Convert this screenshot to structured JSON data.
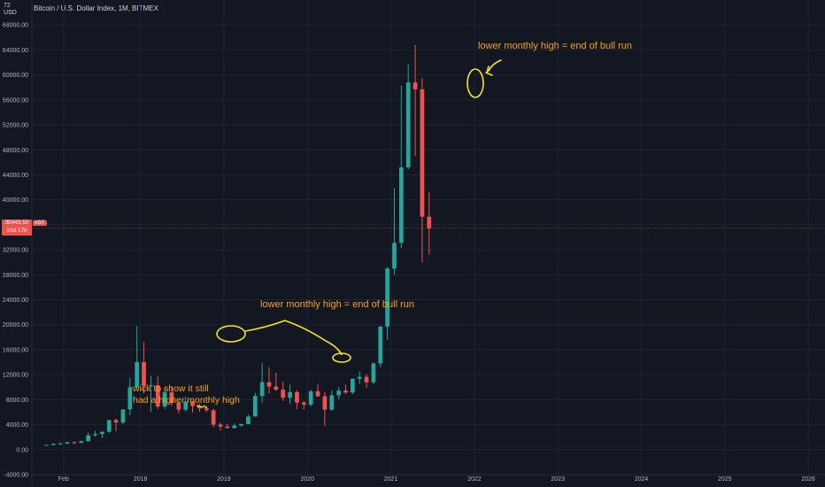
{
  "header": {
    "title": "Bitcoin / U.S. Dollar Index, 1M, BITMEX",
    "currency_top": "72",
    "currency_bottom": "USD"
  },
  "price_tag": {
    "price": "35443.50",
    "countdown": "10d 17h",
    "symbol": "XBT"
  },
  "colors": {
    "background": "#131722",
    "up": "#26a69a",
    "down": "#ef5350",
    "annotation": "#f7a21b",
    "marker": "#f4e22b"
  },
  "chart_data": {
    "type": "candlestick",
    "title": "Bitcoin / U.S. Dollar Index, 1M, BITMEX",
    "y_ticks": [
      "68000.00",
      "64000.00",
      "60000.00",
      "56000.00",
      "52000.00",
      "48000.00",
      "44000.00",
      "40000.00",
      "36000.00",
      "32000.00",
      "28000.00",
      "24000.00",
      "20000.00",
      "16000.00",
      "12000.00",
      "8000.00",
      "4000.00",
      "0.00",
      "-4000.00"
    ],
    "x_ticks": [
      "Feb",
      "2018",
      "2019",
      "2020",
      "2021",
      "2022",
      "2023",
      "2024",
      "2025",
      "2026"
    ],
    "ylim": [
      -4000,
      72000
    ],
    "xlim": [
      2016.7,
      2026.2
    ],
    "last_price": 35443.5,
    "candles": [
      {
        "t": "2016-11",
        "o": 700,
        "h": 760,
        "l": 690,
        "c": 745
      },
      {
        "t": "2016-12",
        "o": 745,
        "h": 980,
        "l": 740,
        "c": 960
      },
      {
        "t": "2017-01",
        "o": 960,
        "h": 1150,
        "l": 800,
        "c": 970
      },
      {
        "t": "2017-02",
        "o": 970,
        "h": 1210,
        "l": 940,
        "c": 1190
      },
      {
        "t": "2017-03",
        "o": 1190,
        "h": 1350,
        "l": 890,
        "c": 1080
      },
      {
        "t": "2017-04",
        "o": 1080,
        "h": 1450,
        "l": 1070,
        "c": 1350
      },
      {
        "t": "2017-05",
        "o": 1350,
        "h": 2760,
        "l": 1350,
        "c": 2300
      },
      {
        "t": "2017-06",
        "o": 2300,
        "h": 3000,
        "l": 2100,
        "c": 2500
      },
      {
        "t": "2017-07",
        "o": 2500,
        "h": 2920,
        "l": 1830,
        "c": 2860
      },
      {
        "t": "2017-08",
        "o": 2860,
        "h": 4750,
        "l": 2700,
        "c": 4740
      },
      {
        "t": "2017-09",
        "o": 4740,
        "h": 4980,
        "l": 2950,
        "c": 4340
      },
      {
        "t": "2017-10",
        "o": 4340,
        "h": 6450,
        "l": 4100,
        "c": 6440
      },
      {
        "t": "2017-11",
        "o": 6440,
        "h": 11500,
        "l": 5500,
        "c": 10000
      },
      {
        "t": "2017-12",
        "o": 10000,
        "h": 19800,
        "l": 10000,
        "c": 14000
      },
      {
        "t": "2018-01",
        "o": 14000,
        "h": 17200,
        "l": 9000,
        "c": 10200
      },
      {
        "t": "2018-02",
        "o": 10200,
        "h": 11800,
        "l": 6000,
        "c": 10300
      },
      {
        "t": "2018-03",
        "o": 10300,
        "h": 11700,
        "l": 6500,
        "c": 6900
      },
      {
        "t": "2018-04",
        "o": 6900,
        "h": 9800,
        "l": 6500,
        "c": 9200
      },
      {
        "t": "2018-05",
        "o": 9200,
        "h": 10000,
        "l": 7000,
        "c": 7500
      },
      {
        "t": "2018-06",
        "o": 7500,
        "h": 7800,
        "l": 5800,
        "c": 6400
      },
      {
        "t": "2018-07",
        "o": 6400,
        "h": 8500,
        "l": 6100,
        "c": 7700
      },
      {
        "t": "2018-08",
        "o": 7700,
        "h": 7800,
        "l": 5900,
        "c": 7000
      },
      {
        "t": "2018-09",
        "o": 7000,
        "h": 7400,
        "l": 6100,
        "c": 6600
      },
      {
        "t": "2018-10",
        "o": 6600,
        "h": 7000,
        "l": 6000,
        "c": 6300
      },
      {
        "t": "2018-11",
        "o": 6300,
        "h": 6500,
        "l": 3600,
        "c": 4000
      },
      {
        "t": "2018-12",
        "o": 4000,
        "h": 4300,
        "l": 3100,
        "c": 3700
      },
      {
        "t": "2019-01",
        "o": 3700,
        "h": 4100,
        "l": 3400,
        "c": 3450
      },
      {
        "t": "2019-02",
        "o": 3450,
        "h": 4200,
        "l": 3380,
        "c": 3850
      },
      {
        "t": "2019-03",
        "o": 3850,
        "h": 4100,
        "l": 3700,
        "c": 4100
      },
      {
        "t": "2019-04",
        "o": 4100,
        "h": 5600,
        "l": 4050,
        "c": 5300
      },
      {
        "t": "2019-05",
        "o": 5300,
        "h": 9100,
        "l": 5300,
        "c": 8600
      },
      {
        "t": "2019-06",
        "o": 8600,
        "h": 13900,
        "l": 7500,
        "c": 10800
      },
      {
        "t": "2019-07",
        "o": 10800,
        "h": 13200,
        "l": 9000,
        "c": 10100
      },
      {
        "t": "2019-08",
        "o": 10100,
        "h": 12300,
        "l": 9400,
        "c": 9600
      },
      {
        "t": "2019-09",
        "o": 9600,
        "h": 10900,
        "l": 7800,
        "c": 8300
      },
      {
        "t": "2019-10",
        "o": 8300,
        "h": 10400,
        "l": 7300,
        "c": 9200
      },
      {
        "t": "2019-11",
        "o": 9200,
        "h": 9500,
        "l": 6500,
        "c": 7550
      },
      {
        "t": "2019-12",
        "o": 7550,
        "h": 7750,
        "l": 6400,
        "c": 7200
      },
      {
        "t": "2020-01",
        "o": 7200,
        "h": 9600,
        "l": 6900,
        "c": 9350
      },
      {
        "t": "2020-02",
        "o": 9350,
        "h": 10500,
        "l": 8400,
        "c": 8550
      },
      {
        "t": "2020-03",
        "o": 8550,
        "h": 9200,
        "l": 3800,
        "c": 6400
      },
      {
        "t": "2020-04",
        "o": 6400,
        "h": 9500,
        "l": 6200,
        "c": 8700
      },
      {
        "t": "2020-05",
        "o": 8700,
        "h": 10000,
        "l": 8100,
        "c": 9450
      },
      {
        "t": "2020-06",
        "o": 9450,
        "h": 10400,
        "l": 8900,
        "c": 9150
      },
      {
        "t": "2020-07",
        "o": 9150,
        "h": 11400,
        "l": 8900,
        "c": 11350
      },
      {
        "t": "2020-08",
        "o": 11350,
        "h": 12500,
        "l": 10500,
        "c": 11650
      },
      {
        "t": "2020-09",
        "o": 11650,
        "h": 12100,
        "l": 9900,
        "c": 10780
      },
      {
        "t": "2020-10",
        "o": 10780,
        "h": 14000,
        "l": 10500,
        "c": 13800
      },
      {
        "t": "2020-11",
        "o": 13800,
        "h": 19800,
        "l": 13200,
        "c": 19700
      },
      {
        "t": "2020-12",
        "o": 19700,
        "h": 29300,
        "l": 17600,
        "c": 29000
      },
      {
        "t": "2021-01",
        "o": 29000,
        "h": 41900,
        "l": 28000,
        "c": 33100
      },
      {
        "t": "2021-02",
        "o": 33100,
        "h": 58300,
        "l": 32300,
        "c": 45200
      },
      {
        "t": "2021-03",
        "o": 45200,
        "h": 61700,
        "l": 44900,
        "c": 58800
      },
      {
        "t": "2021-04",
        "o": 58800,
        "h": 64800,
        "l": 47000,
        "c": 57700
      },
      {
        "t": "2021-05",
        "o": 57700,
        "h": 59500,
        "l": 30000,
        "c": 37300
      },
      {
        "t": "2021-06",
        "o": 37300,
        "h": 41300,
        "l": 31200,
        "c": 35443.5
      }
    ],
    "annotations": [
      {
        "text": "lower monthly high = end of bull run",
        "anchor": "top"
      },
      {
        "text": "lower monthly high = end of bull run",
        "anchor": "middle"
      },
      {
        "text": "wick to show it still",
        "anchor": "bottom-left"
      },
      {
        "text": "had a higher monthly high",
        "anchor": "bottom-left"
      }
    ]
  }
}
